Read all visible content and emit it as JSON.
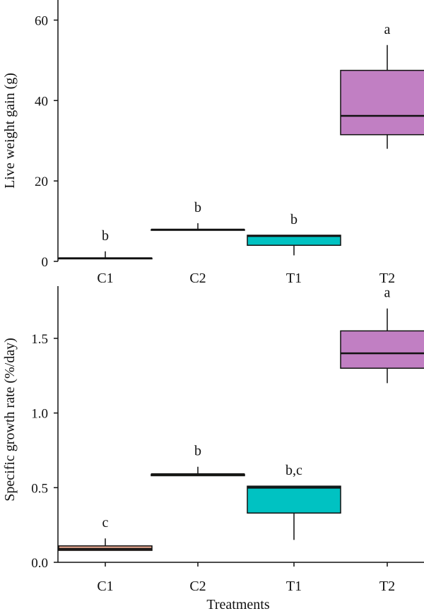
{
  "chart_data": [
    {
      "type": "box",
      "title": "",
      "xlabel": "",
      "ylabel": "Live weight gain (g)",
      "ylim": [
        0,
        65
      ],
      "yticks": [
        0,
        20,
        40,
        60
      ],
      "categories": [
        "C1",
        "C2",
        "T1",
        "T2"
      ],
      "boxes": [
        {
          "category": "C1",
          "min": 0.8,
          "q1": 0.8,
          "median": 0.8,
          "q3": 0.8,
          "max": 2.5,
          "fill": "#e8a991",
          "significance": "b"
        },
        {
          "category": "C2",
          "min": 7.9,
          "q1": 7.9,
          "median": 7.9,
          "q3": 7.9,
          "max": 9.5,
          "fill": "#7f8a5a",
          "significance": "b"
        },
        {
          "category": "T1",
          "min": 1.5,
          "q1": 4.0,
          "median": 6.3,
          "q3": 6.5,
          "max": 6.5,
          "fill": "#00c2c2",
          "significance": "b"
        },
        {
          "category": "T2",
          "min": 28.0,
          "q1": 31.5,
          "median": 36.2,
          "q3": 47.5,
          "max": 53.8,
          "fill": "#c17fc3",
          "significance": "a"
        }
      ]
    },
    {
      "type": "box",
      "title": "",
      "xlabel": "Treatments",
      "ylabel": "Specific growth rate (%/day)",
      "ylim": [
        0,
        1.85
      ],
      "yticks": [
        "0.0",
        "0.5",
        "1.0",
        "1.5"
      ],
      "categories": [
        "C1",
        "C2",
        "T1",
        "T2"
      ],
      "boxes": [
        {
          "category": "C1",
          "min": 0.08,
          "q1": 0.08,
          "median": 0.09,
          "q3": 0.11,
          "max": 0.16,
          "fill": "#e8a991",
          "significance": "c"
        },
        {
          "category": "C2",
          "min": 0.58,
          "q1": 0.58,
          "median": 0.59,
          "q3": 0.59,
          "max": 0.64,
          "fill": "#7f8a5a",
          "significance": "b"
        },
        {
          "category": "T1",
          "min": 0.15,
          "q1": 0.33,
          "median": 0.5,
          "q3": 0.51,
          "max": 0.51,
          "fill": "#00c2c2",
          "significance": "b,c"
        },
        {
          "category": "T2",
          "min": 1.2,
          "q1": 1.3,
          "median": 1.4,
          "q3": 1.55,
          "max": 1.7,
          "fill": "#c17fc3",
          "significance": "a"
        }
      ]
    }
  ]
}
